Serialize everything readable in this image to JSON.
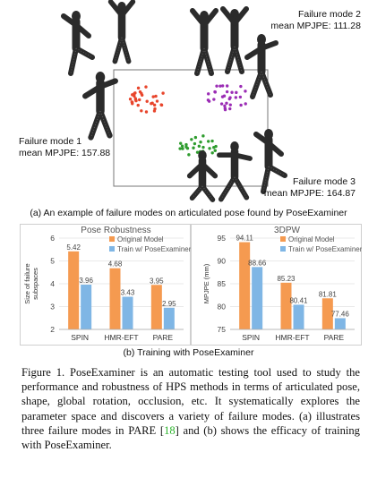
{
  "panel_a": {
    "failure_modes": [
      {
        "name": "Failure mode 1",
        "metric": "mean MPJPE: 157.88",
        "dot_color": "#e8452c"
      },
      {
        "name": "Failure mode 2",
        "metric": "mean MPJPE: 111.28",
        "dot_color": "#9b2db5"
      },
      {
        "name": "Failure mode 3",
        "metric": "mean MPJPE: 164.87",
        "dot_color": "#2e9c2e"
      }
    ],
    "caption": "(a) An example of failure modes on articulated pose found by PoseExaminer"
  },
  "panel_b": {
    "caption": "(b) Training with PoseExaminer",
    "legend": [
      "Original Model",
      "Train w/ PoseExaminer"
    ],
    "colors": {
      "original": "#f59a50",
      "trained": "#7fb6e5"
    }
  },
  "chart_data": [
    {
      "type": "bar",
      "title": "Pose Robustness",
      "categories": [
        "SPIN",
        "HMR-EFT",
        "PARE"
      ],
      "ylabel": "Size of failure subspaces",
      "ylim": [
        2,
        6
      ],
      "yticks": [
        "2",
        "3",
        "4",
        "5",
        "6"
      ],
      "series": [
        {
          "name": "Original Model",
          "values": [
            5.42,
            4.68,
            3.95
          ],
          "labels": [
            "5.42",
            "4.68",
            "3.95"
          ]
        },
        {
          "name": "Train w/ PoseExaminer",
          "values": [
            3.96,
            3.43,
            2.95
          ],
          "labels": [
            "3.96",
            "3.43",
            "2.95"
          ]
        }
      ]
    },
    {
      "type": "bar",
      "title": "3DPW",
      "categories": [
        "SPIN",
        "HMR-EFT",
        "PARE"
      ],
      "ylabel": "MPJPE (mm)",
      "ylim": [
        75,
        95
      ],
      "yticks": [
        "75",
        "80",
        "85",
        "90",
        "95"
      ],
      "series": [
        {
          "name": "Original Model",
          "values": [
            94.11,
            85.23,
            81.81
          ],
          "labels": [
            "94.11",
            "85.23",
            "81.81"
          ]
        },
        {
          "name": "Train w/ PoseExaminer",
          "values": [
            88.66,
            80.41,
            77.46
          ],
          "labels": [
            "88.66",
            "80.41",
            "77.46"
          ]
        }
      ]
    }
  ],
  "figure_caption": {
    "before_ref": "Figure 1. PoseExaminer is an automatic testing tool used to study the performance and robustness of HPS methods in terms of articulated pose, shape, global rotation, occlusion, etc. It systematically explores the parameter space and discovers a variety of failure modes. (a) illustrates three failure modes in PARE [",
    "ref": "18",
    "after_ref": "] and (b) shows the efficacy of training with PoseExaminer."
  }
}
